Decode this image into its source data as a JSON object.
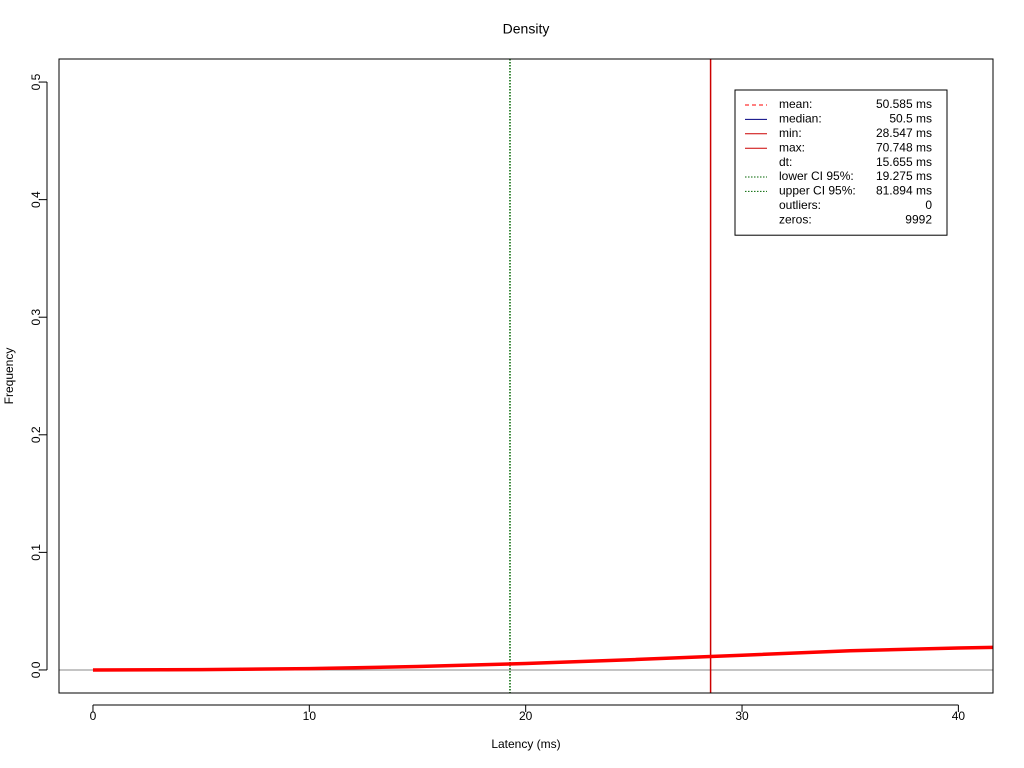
{
  "chart_data": {
    "type": "line",
    "title": "Density",
    "x_label": "Latency (ms)",
    "y_label": "Frequency",
    "series": [
      {
        "name": "density",
        "color": "#ff0000",
        "x": [
          0,
          5,
          10,
          15,
          20,
          25,
          30,
          35,
          40,
          41.6
        ],
        "values": [
          0,
          0.0003,
          0.0011,
          0.0029,
          0.0055,
          0.0088,
          0.0125,
          0.0163,
          0.0187,
          0.0192
        ]
      }
    ],
    "xlim": [
      -1.57,
      41.6
    ],
    "ylim": [
      -0.0196,
      0.5196
    ],
    "xticks": [
      0,
      10,
      20,
      30,
      40
    ],
    "yticks": [
      {
        "value": 0,
        "label": "0.0"
      },
      0.1,
      0.2,
      0.3,
      0.4,
      0.5
    ],
    "legend_position": "top-right",
    "stats": {
      "labels": [
        "mean:",
        "median:",
        "min:",
        "max:",
        "dt:",
        "lower CI 95%:",
        "upper CI 95%:",
        "outliers:",
        "zeros:"
      ],
      "values": [
        50.585,
        50.5,
        28.547,
        70.748,
        15.655,
        19.275,
        81.894,
        0,
        9992
      ],
      "value_labels": [
        "50.585 ms",
        "50.5 ms",
        "28.547 ms",
        "70.748 ms",
        "15.655 ms",
        "19.275 ms",
        "81.894 ms",
        "0",
        "9992"
      ],
      "colors": [
        "#ff0000",
        "#000080",
        "#cc0000",
        "#cc0000",
        null,
        "#006400",
        "#006400",
        null,
        null
      ],
      "line_styles": [
        "dashed",
        "solid",
        "solid",
        "solid",
        null,
        "dotted",
        "dotted",
        null,
        null
      ]
    }
  }
}
